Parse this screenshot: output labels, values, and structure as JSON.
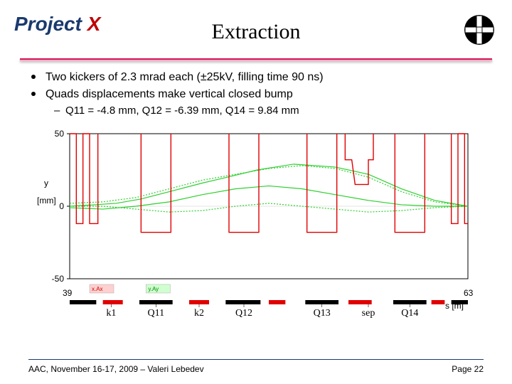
{
  "header": {
    "logo_project": "Project",
    "logo_x": " X",
    "title": "Extraction"
  },
  "bullets": [
    "Two kickers of 2.3 mrad each (±25kV, filling time 90 ns)",
    "Quads displacements make vertical closed bump"
  ],
  "subbullet": "Q11 = -4.8 mm, Q12 = -6.39 mm, Q14 = 9.84 mm",
  "chart": {
    "type": "line-overlay",
    "background_color": "#ffffff",
    "axis_color": "#000000",
    "green_color": "#2fcf2f",
    "red_color": "#e00000",
    "black_color": "#000000",
    "y_label": "y\n[mm]",
    "y_ticks": [
      50,
      0,
      -50
    ],
    "x_label": "s [m]",
    "x_range": [
      39,
      63
    ],
    "x_ticks_labels": [
      "k1",
      "Q11",
      "k2",
      "Q12",
      "Q13",
      "sep",
      "Q14"
    ],
    "x_ticks_positions": [
      41.5,
      44.2,
      46.8,
      49.5,
      54.2,
      57.0,
      59.5
    ],
    "curves": [
      {
        "color": "#2fcf2f",
        "width": 1.2,
        "points": [
          [
            39,
            0
          ],
          [
            40.5,
            1
          ],
          [
            41.8,
            2
          ],
          [
            43.3,
            5
          ],
          [
            45,
            10
          ],
          [
            47,
            16
          ],
          [
            48.5,
            20
          ],
          [
            50.3,
            25
          ],
          [
            52.5,
            29
          ],
          [
            55,
            27
          ],
          [
            57,
            22
          ],
          [
            59,
            12
          ],
          [
            61,
            4
          ],
          [
            63,
            0
          ]
        ]
      },
      {
        "color": "#2fcf2f",
        "width": 1.2,
        "points": [
          [
            39,
            -1
          ],
          [
            41,
            -2
          ],
          [
            43,
            0
          ],
          [
            45,
            3
          ],
          [
            47,
            8
          ],
          [
            49,
            12
          ],
          [
            51,
            14
          ],
          [
            53,
            12
          ],
          [
            55,
            8
          ],
          [
            57,
            4
          ],
          [
            59,
            1
          ],
          [
            61,
            0
          ],
          [
            63,
            0
          ]
        ]
      },
      {
        "color": "#2fcf2f",
        "width": 1.2,
        "dash": "2,2",
        "points": [
          [
            39,
            2
          ],
          [
            41,
            3
          ],
          [
            43,
            6
          ],
          [
            45,
            12
          ],
          [
            47,
            18
          ],
          [
            49,
            22
          ],
          [
            51,
            26
          ],
          [
            53,
            28
          ],
          [
            55,
            26
          ],
          [
            57,
            20
          ],
          [
            59,
            10
          ],
          [
            61,
            3
          ],
          [
            63,
            0
          ]
        ]
      },
      {
        "color": "#2fcf2f",
        "width": 1.2,
        "dash": "2,2",
        "points": [
          [
            39,
            0
          ],
          [
            41,
            0
          ],
          [
            43,
            -2
          ],
          [
            45,
            -4
          ],
          [
            47,
            -3
          ],
          [
            49,
            0
          ],
          [
            51,
            2
          ],
          [
            53,
            0
          ],
          [
            55,
            -2
          ],
          [
            57,
            -4
          ],
          [
            59,
            -3
          ],
          [
            61,
            -1
          ],
          [
            63,
            0
          ]
        ]
      },
      {
        "color": "#e00000",
        "width": 1.4,
        "points": [
          [
            39,
            50
          ],
          [
            39.4,
            50
          ],
          [
            39.4,
            -12
          ],
          [
            39.8,
            -12
          ],
          [
            39.8,
            50
          ],
          [
            40.2,
            50
          ],
          [
            40.2,
            -12
          ],
          [
            40.7,
            -12
          ],
          [
            40.7,
            50
          ]
        ]
      },
      {
        "color": "#e00000",
        "width": 1.4,
        "points": [
          [
            43.3,
            50
          ],
          [
            43.3,
            -18
          ],
          [
            45.1,
            -18
          ],
          [
            45.1,
            50
          ]
        ]
      },
      {
        "color": "#e00000",
        "width": 1.4,
        "points": [
          [
            48.6,
            50
          ],
          [
            48.6,
            -18
          ],
          [
            50.4,
            -18
          ],
          [
            50.4,
            50
          ]
        ]
      },
      {
        "color": "#e00000",
        "width": 1.4,
        "points": [
          [
            53.3,
            50
          ],
          [
            53.3,
            -18
          ],
          [
            55.1,
            -18
          ],
          [
            55.1,
            50
          ]
        ]
      },
      {
        "color": "#e00000",
        "width": 1.4,
        "points": [
          [
            55.6,
            50
          ],
          [
            55.6,
            32
          ],
          [
            56.0,
            32
          ],
          [
            56.2,
            15
          ],
          [
            57.0,
            15
          ],
          [
            57.0,
            32
          ],
          [
            57.3,
            32
          ],
          [
            57.3,
            50
          ]
        ]
      },
      {
        "color": "#e00000",
        "width": 1.4,
        "points": [
          [
            58.6,
            50
          ],
          [
            58.6,
            -18
          ],
          [
            60.4,
            -18
          ],
          [
            60.4,
            50
          ]
        ]
      },
      {
        "color": "#e00000",
        "width": 1.4,
        "points": [
          [
            62,
            50
          ],
          [
            62,
            -12
          ],
          [
            62.4,
            -12
          ],
          [
            62.4,
            50
          ],
          [
            62.8,
            50
          ],
          [
            62.8,
            -12
          ],
          [
            63,
            -12
          ]
        ]
      }
    ],
    "bottom_bars": {
      "y": -46,
      "height": 3,
      "black_segments": [
        [
          39,
          40.6
        ],
        [
          43.2,
          45.2
        ],
        [
          48.4,
          50.5
        ],
        [
          53.2,
          55.2
        ],
        [
          58.5,
          60.5
        ],
        [
          62,
          63
        ]
      ],
      "red_segments": [
        [
          41.0,
          42.2
        ],
        [
          46.2,
          47.4
        ],
        [
          51.0,
          52.0
        ],
        [
          55.8,
          57.2
        ],
        [
          60.8,
          61.6
        ]
      ],
      "legend_box_1": {
        "x": 40.2,
        "text": "x.Ax",
        "bg": "#ffd0d0"
      },
      "legend_box_2": {
        "x": 43.6,
        "text": "y.Ay",
        "bg": "#d0ffd0"
      }
    }
  },
  "footer": {
    "left": "AAC, November 16-17, 2009 – Valeri Lebedev",
    "right": "Page 22"
  }
}
